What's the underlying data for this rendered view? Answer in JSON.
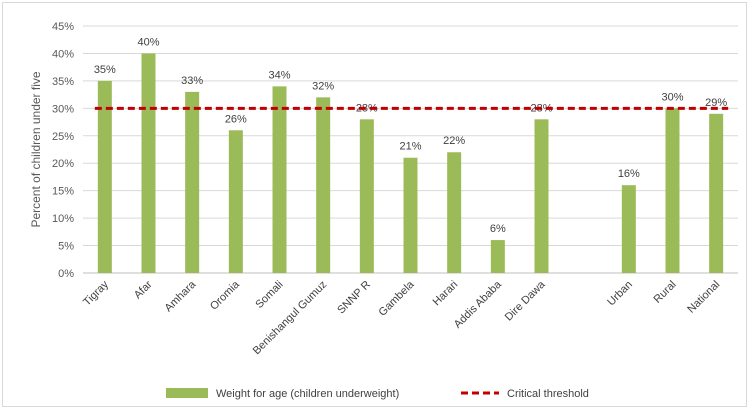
{
  "chart_data": {
    "type": "bar",
    "ylabel": "Percent of children under five",
    "ylim": [
      0,
      45
    ],
    "yticks": [
      "0%",
      "5%",
      "10%",
      "15%",
      "20%",
      "25%",
      "30%",
      "35%",
      "40%",
      "45%"
    ],
    "categories": [
      "Tigray",
      "Afar",
      "Amhara",
      "Oromia",
      "Somali",
      "Benishangul Gumuz",
      "SNNP R",
      "Gambela",
      "Harari",
      "Addis Ababa",
      "Dire Dawa",
      "",
      "Urban",
      "Rural",
      "National"
    ],
    "series": [
      {
        "name": "Weight for age (children underweight)",
        "type": "bar",
        "color": "#9bbb59",
        "values": [
          35,
          40,
          33,
          26,
          34,
          32,
          28,
          21,
          22,
          6,
          28,
          null,
          16,
          30,
          29
        ],
        "labels": [
          "35%",
          "40%",
          "33%",
          "26%",
          "34%",
          "32%",
          "28%",
          "21%",
          "22%",
          "6%",
          "28%",
          "",
          "16%",
          "30%",
          "29%"
        ]
      },
      {
        "name": "Critical threshold",
        "type": "line",
        "style": "dashed",
        "color": "#c00000",
        "value": 30
      }
    ],
    "grid": true,
    "legend": "bottom"
  }
}
